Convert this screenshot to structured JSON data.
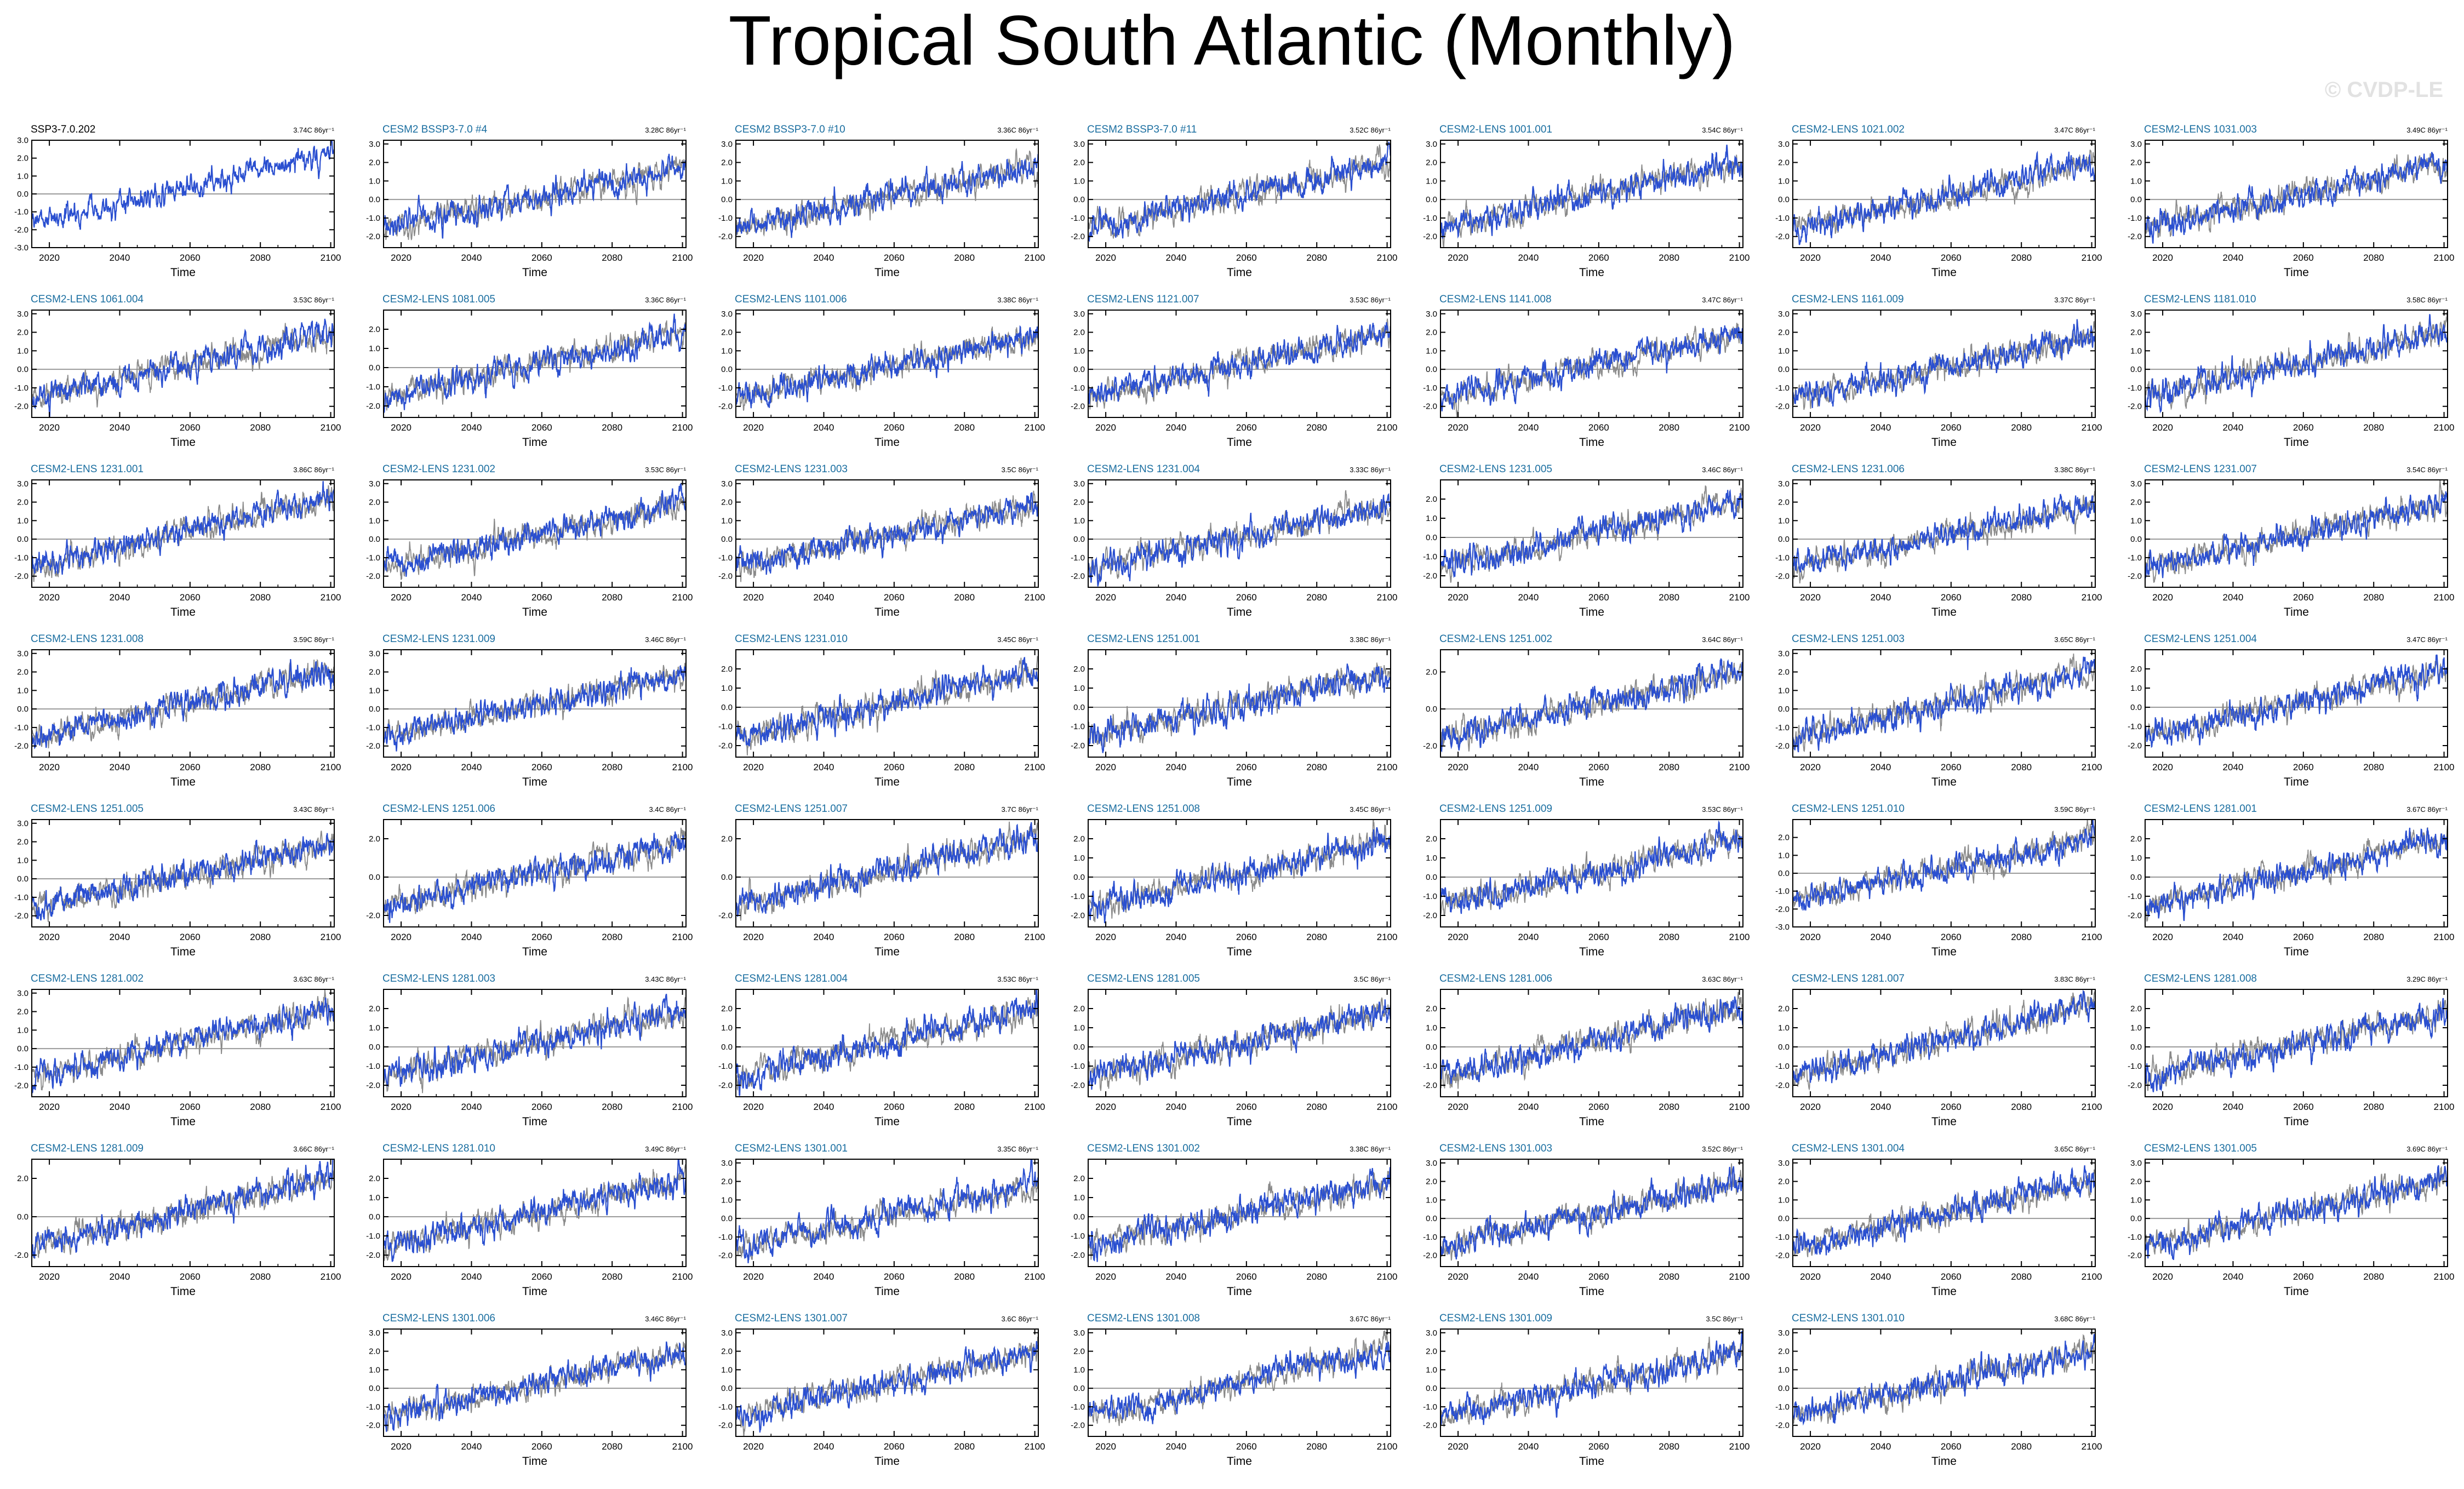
{
  "title": "Tropical South Atlantic (Monthly)",
  "watermark": "© CVDP-LE",
  "colors": {
    "member_line": "#2a4fd0",
    "observed_line": "#8a8a8a",
    "label_first": "#000000",
    "label_member": "#1a6ea0",
    "zero_line": "#9a9a9a",
    "frame": "#000000"
  },
  "chart_data": {
    "type": "line",
    "layout": "small-multiples grid, 7 columns x 8 rows",
    "xlabel": "Time",
    "xticks": [
      2020,
      2040,
      2060,
      2080,
      2100
    ],
    "xlim": [
      2015,
      2101
    ],
    "units": "C",
    "trend_label_suffix": "C 86yr⁻¹",
    "series_description": "monthly SST anomaly per ensemble member (blue) over observed/reference (gray)",
    "panels": [
      {
        "name": "SSP3-7.0.202",
        "trend": "3.74",
        "yticks": [
          3.0,
          2.0,
          1.0,
          0.0,
          -1.0,
          -2.0,
          -3.0
        ],
        "ylim": [
          -3.0,
          3.0
        ]
      },
      {
        "name": "CESM2 BSSP3-7.0 #4",
        "trend": "3.28",
        "yticks": [
          3.0,
          2.0,
          1.0,
          0.0,
          -1.0,
          -2.0
        ],
        "ylim": [
          -2.6,
          3.2
        ]
      },
      {
        "name": "CESM2 BSSP3-7.0 #10",
        "trend": "3.36",
        "yticks": [
          3.0,
          2.0,
          1.0,
          0.0,
          -1.0,
          -2.0
        ],
        "ylim": [
          -2.6,
          3.2
        ]
      },
      {
        "name": "CESM2 BSSP3-7.0 #11",
        "trend": "3.52",
        "yticks": [
          3.0,
          2.0,
          1.0,
          0.0,
          -1.0,
          -2.0
        ],
        "ylim": [
          -2.6,
          3.2
        ]
      },
      {
        "name": "CESM2-LENS 1001.001",
        "trend": "3.54",
        "yticks": [
          3.0,
          2.0,
          1.0,
          0.0,
          -1.0,
          -2.0
        ],
        "ylim": [
          -2.6,
          3.2
        ]
      },
      {
        "name": "CESM2-LENS 1021.002",
        "trend": "3.47",
        "yticks": [
          3.0,
          2.0,
          1.0,
          0.0,
          -1.0,
          -2.0
        ],
        "ylim": [
          -2.6,
          3.2
        ]
      },
      {
        "name": "CESM2-LENS 1031.003",
        "trend": "3.49",
        "yticks": [
          3.0,
          2.0,
          1.0,
          0.0,
          -1.0,
          -2.0
        ],
        "ylim": [
          -2.6,
          3.2
        ]
      },
      {
        "name": "CESM2-LENS 1061.004",
        "trend": "3.53",
        "yticks": [
          3.0,
          2.0,
          1.0,
          0.0,
          -1.0,
          -2.0
        ],
        "ylim": [
          -2.6,
          3.2
        ]
      },
      {
        "name": "CESM2-LENS 1081.005",
        "trend": "3.36",
        "yticks": [
          2.0,
          1.0,
          0.0,
          -1.0,
          -2.0
        ],
        "ylim": [
          -2.6,
          3.0
        ]
      },
      {
        "name": "CESM2-LENS 1101.006",
        "trend": "3.38",
        "yticks": [
          3.0,
          2.0,
          1.0,
          0.0,
          -1.0,
          -2.0
        ],
        "ylim": [
          -2.6,
          3.2
        ]
      },
      {
        "name": "CESM2-LENS 1121.007",
        "trend": "3.53",
        "yticks": [
          3.0,
          2.0,
          1.0,
          0.0,
          -1.0,
          -2.0
        ],
        "ylim": [
          -2.6,
          3.2
        ]
      },
      {
        "name": "CESM2-LENS 1141.008",
        "trend": "3.47",
        "yticks": [
          3.0,
          2.0,
          1.0,
          0.0,
          -1.0,
          -2.0
        ],
        "ylim": [
          -2.6,
          3.2
        ]
      },
      {
        "name": "CESM2-LENS 1161.009",
        "trend": "3.37",
        "yticks": [
          3.0,
          2.0,
          1.0,
          0.0,
          -1.0,
          -2.0
        ],
        "ylim": [
          -2.6,
          3.2
        ]
      },
      {
        "name": "CESM2-LENS 1181.010",
        "trend": "3.58",
        "yticks": [
          3.0,
          2.0,
          1.0,
          0.0,
          -1.0,
          -2.0
        ],
        "ylim": [
          -2.6,
          3.2
        ]
      },
      {
        "name": "CESM2-LENS 1231.001",
        "trend": "3.86",
        "yticks": [
          3.0,
          2.0,
          1.0,
          0.0,
          -1.0,
          -2.0
        ],
        "ylim": [
          -2.6,
          3.2
        ]
      },
      {
        "name": "CESM2-LENS 1231.002",
        "trend": "3.53",
        "yticks": [
          3.0,
          2.0,
          1.0,
          0.0,
          -1.0,
          -2.0
        ],
        "ylim": [
          -2.6,
          3.2
        ]
      },
      {
        "name": "CESM2-LENS 1231.003",
        "trend": "3.5",
        "yticks": [
          3.0,
          2.0,
          1.0,
          0.0,
          -1.0,
          -2.0
        ],
        "ylim": [
          -2.6,
          3.2
        ]
      },
      {
        "name": "CESM2-LENS 1231.004",
        "trend": "3.33",
        "yticks": [
          3.0,
          2.0,
          1.0,
          0.0,
          -1.0,
          -2.0
        ],
        "ylim": [
          -2.6,
          3.2
        ]
      },
      {
        "name": "CESM2-LENS 1231.005",
        "trend": "3.46",
        "yticks": [
          2.0,
          1.0,
          0.0,
          -1.0,
          -2.0
        ],
        "ylim": [
          -2.6,
          3.0
        ]
      },
      {
        "name": "CESM2-LENS 1231.006",
        "trend": "3.38",
        "yticks": [
          3.0,
          2.0,
          1.0,
          0.0,
          -1.0,
          -2.0
        ],
        "ylim": [
          -2.6,
          3.2
        ]
      },
      {
        "name": "CESM2-LENS 1231.007",
        "trend": "3.54",
        "yticks": [
          3.0,
          2.0,
          1.0,
          0.0,
          -1.0,
          -2.0
        ],
        "ylim": [
          -2.6,
          3.2
        ]
      },
      {
        "name": "CESM2-LENS 1231.008",
        "trend": "3.59",
        "yticks": [
          3.0,
          2.0,
          1.0,
          0.0,
          -1.0,
          -2.0
        ],
        "ylim": [
          -2.6,
          3.2
        ]
      },
      {
        "name": "CESM2-LENS 1231.009",
        "trend": "3.46",
        "yticks": [
          3.0,
          2.0,
          1.0,
          0.0,
          -1.0,
          -2.0
        ],
        "ylim": [
          -2.6,
          3.2
        ]
      },
      {
        "name": "CESM2-LENS 1231.010",
        "trend": "3.45",
        "yticks": [
          2.0,
          1.0,
          0.0,
          -1.0,
          -2.0
        ],
        "ylim": [
          -2.6,
          3.0
        ]
      },
      {
        "name": "CESM2-LENS 1251.001",
        "trend": "3.38",
        "yticks": [
          2.0,
          1.0,
          0.0,
          -1.0,
          -2.0
        ],
        "ylim": [
          -2.6,
          3.0
        ]
      },
      {
        "name": "CESM2-LENS 1251.002",
        "trend": "3.64",
        "yticks": [
          2.0,
          0.0,
          -2.0
        ],
        "ylim": [
          -2.6,
          3.2
        ]
      },
      {
        "name": "CESM2-LENS 1251.003",
        "trend": "3.65",
        "yticks": [
          3.0,
          2.0,
          1.0,
          0.0,
          -1.0,
          -2.0
        ],
        "ylim": [
          -2.6,
          3.2
        ]
      },
      {
        "name": "CESM2-LENS 1251.004",
        "trend": "3.47",
        "yticks": [
          2.0,
          1.0,
          0.0,
          -1.0,
          -2.0
        ],
        "ylim": [
          -2.6,
          3.0
        ]
      },
      {
        "name": "CESM2-LENS 1251.005",
        "trend": "3.43",
        "yticks": [
          3.0,
          2.0,
          1.0,
          0.0,
          -1.0,
          -2.0
        ],
        "ylim": [
          -2.6,
          3.2
        ]
      },
      {
        "name": "CESM2-LENS 1251.006",
        "trend": "3.4",
        "yticks": [
          2.0,
          0.0,
          -2.0
        ],
        "ylim": [
          -2.6,
          3.0
        ]
      },
      {
        "name": "CESM2-LENS 1251.007",
        "trend": "3.7",
        "yticks": [
          2.0,
          0.0,
          -2.0
        ],
        "ylim": [
          -2.6,
          3.0
        ]
      },
      {
        "name": "CESM2-LENS 1251.008",
        "trend": "3.45",
        "yticks": [
          2.0,
          1.0,
          0.0,
          -1.0,
          -2.0
        ],
        "ylim": [
          -2.6,
          3.0
        ]
      },
      {
        "name": "CESM2-LENS 1251.009",
        "trend": "3.53",
        "yticks": [
          2.0,
          1.0,
          0.0,
          -1.0,
          -2.0
        ],
        "ylim": [
          -2.6,
          3.0
        ]
      },
      {
        "name": "CESM2-LENS 1251.010",
        "trend": "3.59",
        "yticks": [
          2.0,
          1.0,
          0.0,
          -1.0,
          -2.0,
          -3.0
        ],
        "ylim": [
          -3.0,
          3.0
        ]
      },
      {
        "name": "CESM2-LENS 1281.001",
        "trend": "3.67",
        "yticks": [
          2.0,
          1.0,
          0.0,
          -1.0,
          -2.0
        ],
        "ylim": [
          -2.6,
          3.0
        ]
      },
      {
        "name": "CESM2-LENS 1281.002",
        "trend": "3.63",
        "yticks": [
          3.0,
          2.0,
          1.0,
          0.0,
          -1.0,
          -2.0
        ],
        "ylim": [
          -2.6,
          3.2
        ]
      },
      {
        "name": "CESM2-LENS 1281.003",
        "trend": "3.43",
        "yticks": [
          2.0,
          1.0,
          0.0,
          -1.0,
          -2.0
        ],
        "ylim": [
          -2.6,
          3.0
        ]
      },
      {
        "name": "CESM2-LENS 1281.004",
        "trend": "3.53",
        "yticks": [
          2.0,
          1.0,
          0.0,
          -1.0,
          -2.0
        ],
        "ylim": [
          -2.6,
          3.0
        ]
      },
      {
        "name": "CESM2-LENS 1281.005",
        "trend": "3.5",
        "yticks": [
          2.0,
          1.0,
          0.0,
          -1.0,
          -2.0
        ],
        "ylim": [
          -2.6,
          3.0
        ]
      },
      {
        "name": "CESM2-LENS 1281.006",
        "trend": "3.63",
        "yticks": [
          2.0,
          1.0,
          0.0,
          -1.0,
          -2.0
        ],
        "ylim": [
          -2.6,
          3.0
        ]
      },
      {
        "name": "CESM2-LENS 1281.007",
        "trend": "3.83",
        "yticks": [
          2.0,
          1.0,
          0.0,
          -1.0,
          -2.0
        ],
        "ylim": [
          -2.6,
          3.0
        ]
      },
      {
        "name": "CESM2-LENS 1281.008",
        "trend": "3.29",
        "yticks": [
          2.0,
          1.0,
          0.0,
          -1.0,
          -2.0
        ],
        "ylim": [
          -2.6,
          3.0
        ]
      },
      {
        "name": "CESM2-LENS 1281.009",
        "trend": "3.66",
        "yticks": [
          2.0,
          0.0,
          -2.0
        ],
        "ylim": [
          -2.6,
          3.0
        ]
      },
      {
        "name": "CESM2-LENS 1281.010",
        "trend": "3.49",
        "yticks": [
          2.0,
          1.0,
          0.0,
          -1.0,
          -2.0
        ],
        "ylim": [
          -2.6,
          3.0
        ]
      },
      {
        "name": "CESM2-LENS 1301.001",
        "trend": "3.35",
        "yticks": [
          3.0,
          2.0,
          1.0,
          0.0,
          -1.0,
          -2.0
        ],
        "ylim": [
          -2.6,
          3.2
        ]
      },
      {
        "name": "CESM2-LENS 1301.002",
        "trend": "3.38",
        "yticks": [
          2.0,
          1.0,
          0.0,
          -1.0,
          -2.0
        ],
        "ylim": [
          -2.6,
          3.0
        ]
      },
      {
        "name": "CESM2-LENS 1301.003",
        "trend": "3.52",
        "yticks": [
          3.0,
          2.0,
          1.0,
          0.0,
          -1.0,
          -2.0
        ],
        "ylim": [
          -2.6,
          3.2
        ]
      },
      {
        "name": "CESM2-LENS 1301.004",
        "trend": "3.65",
        "yticks": [
          3.0,
          2.0,
          1.0,
          0.0,
          -1.0,
          -2.0
        ],
        "ylim": [
          -2.6,
          3.2
        ]
      },
      {
        "name": "CESM2-LENS 1301.005",
        "trend": "3.69",
        "yticks": [
          3.0,
          2.0,
          1.0,
          0.0,
          -1.0,
          -2.0
        ],
        "ylim": [
          -2.6,
          3.2
        ]
      },
      {
        "name": "CESM2-LENS 1301.006",
        "trend": "3.46",
        "yticks": [
          3.0,
          2.0,
          1.0,
          0.0,
          -1.0,
          -2.0
        ],
        "ylim": [
          -2.6,
          3.2
        ]
      },
      {
        "name": "CESM2-LENS 1301.007",
        "trend": "3.6",
        "yticks": [
          3.0,
          2.0,
          1.0,
          0.0,
          -1.0,
          -2.0
        ],
        "ylim": [
          -2.6,
          3.2
        ]
      },
      {
        "name": "CESM2-LENS 1301.008",
        "trend": "3.67",
        "yticks": [
          3.0,
          2.0,
          1.0,
          0.0,
          -1.0,
          -2.0
        ],
        "ylim": [
          -2.6,
          3.2
        ]
      },
      {
        "name": "CESM2-LENS 1301.009",
        "trend": "3.5",
        "yticks": [
          3.0,
          2.0,
          1.0,
          0.0,
          -1.0,
          -2.0
        ],
        "ylim": [
          -2.6,
          3.2
        ]
      },
      {
        "name": "CESM2-LENS 1301.010",
        "trend": "3.68",
        "yticks": [
          3.0,
          2.0,
          1.0,
          0.0,
          -1.0,
          -2.0
        ],
        "ylim": [
          -2.6,
          3.2
        ]
      }
    ]
  }
}
